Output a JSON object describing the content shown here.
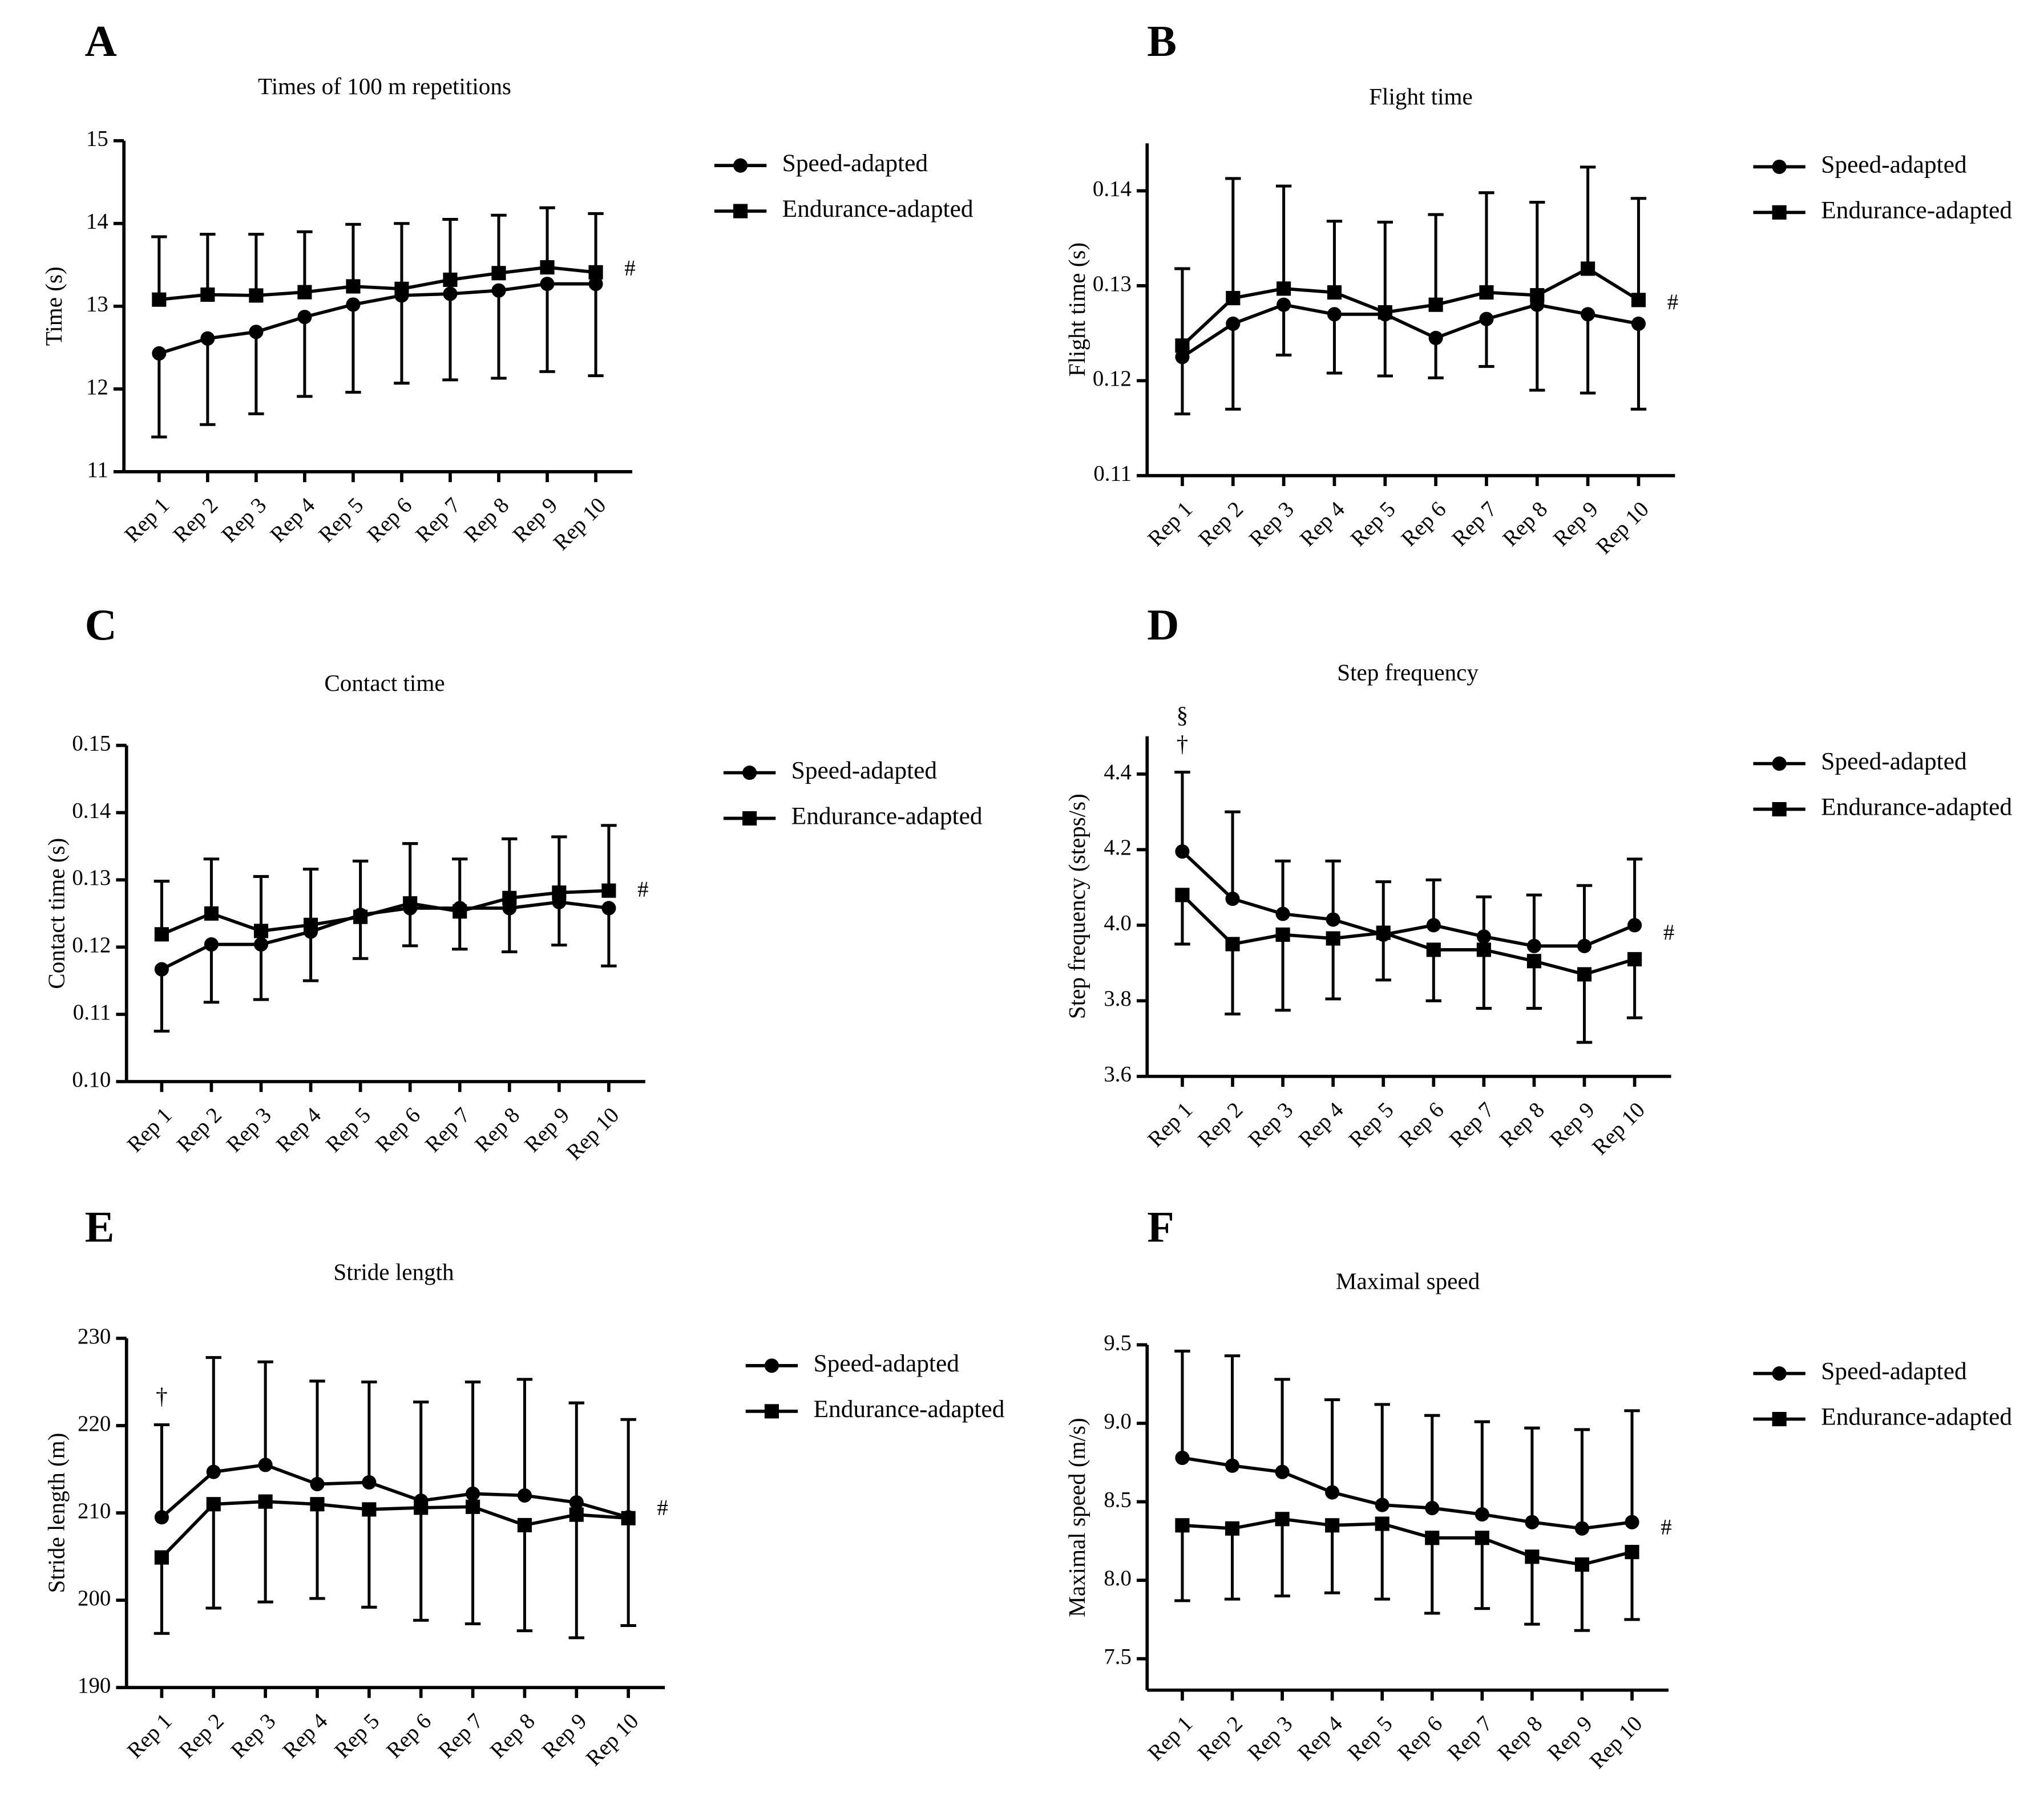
{
  "chart_data": [
    {
      "type": "line",
      "panel_label": "A",
      "title": "Times of 100 m repetitions",
      "y_label": "Time (s)",
      "categories": [
        "Rep 1",
        "Rep 2",
        "Rep 3",
        "Rep 4",
        "Rep 5",
        "Rep 6",
        "Rep 7",
        "Rep 8",
        "Rep 9",
        "Rep 10"
      ],
      "series": [
        {
          "name": "Speed-adapted",
          "color": "#000000",
          "marker": "circle",
          "error_direction": "down",
          "values": [
            12.43,
            12.61,
            12.69,
            12.87,
            13.02,
            13.13,
            13.15,
            13.19,
            13.27,
            13.27
          ],
          "errors": [
            1.01,
            1.04,
            0.99,
            0.96,
            1.06,
            1.06,
            1.04,
            1.06,
            1.06,
            1.11
          ]
        },
        {
          "name": "Endurance-adapted",
          "color": "#000000",
          "marker": "square",
          "error_direction": "up",
          "values": [
            13.08,
            13.14,
            13.13,
            13.17,
            13.24,
            13.21,
            13.32,
            13.4,
            13.47,
            13.41
          ],
          "errors": [
            0.76,
            0.73,
            0.74,
            0.73,
            0.75,
            0.79,
            0.73,
            0.7,
            0.72,
            0.71
          ]
        }
      ],
      "ylim": [
        11,
        15
      ],
      "yticks": [
        11,
        12,
        13,
        14,
        15
      ],
      "end_mark": "#"
    },
    {
      "type": "line",
      "panel_label": "B",
      "title": "Flight time",
      "y_label": "Flight time (s)",
      "categories": [
        "Rep 1",
        "Rep 2",
        "Rep 3",
        "Rep 4",
        "Rep 5",
        "Rep 6",
        "Rep 7",
        "Rep 8",
        "Rep 9",
        "Rep 10"
      ],
      "series": [
        {
          "name": "Speed-adapted",
          "color": "#000000",
          "marker": "circle",
          "error_direction": "down",
          "values": [
            0.1225,
            0.126,
            0.128,
            0.127,
            0.127,
            0.1245,
            0.1265,
            0.128,
            0.127,
            0.126
          ],
          "errors": [
            0.006,
            0.009,
            0.0053,
            0.0062,
            0.0065,
            0.0042,
            0.005,
            0.009,
            0.0083,
            0.009
          ]
        },
        {
          "name": "Endurance-adapted",
          "color": "#000000",
          "marker": "square",
          "error_direction": "up",
          "values": [
            0.1237,
            0.1287,
            0.1297,
            0.1293,
            0.1272,
            0.128,
            0.1293,
            0.129,
            0.1318,
            0.1285
          ],
          "errors": [
            0.0081,
            0.0126,
            0.0108,
            0.0075,
            0.0095,
            0.0095,
            0.0105,
            0.0098,
            0.0107,
            0.0107
          ]
        }
      ],
      "ylim": [
        0.11,
        0.145
      ],
      "yticks": [
        0.11,
        0.12,
        0.13,
        0.14
      ],
      "end_mark": "#"
    },
    {
      "type": "line",
      "panel_label": "C",
      "title": "Contact time",
      "y_label": "Contact time (s)",
      "categories": [
        "Rep 1",
        "Rep 2",
        "Rep 3",
        "Rep 4",
        "Rep 5",
        "Rep 6",
        "Rep 7",
        "Rep 8",
        "Rep 9",
        "Rep 10"
      ],
      "series": [
        {
          "name": "Speed-adapted",
          "color": "#000000",
          "marker": "circle",
          "error_direction": "down",
          "values": [
            0.1167,
            0.1204,
            0.1204,
            0.1223,
            0.1248,
            0.1258,
            0.1258,
            0.1258,
            0.1267,
            0.1258
          ],
          "errors": [
            0.0092,
            0.0086,
            0.0082,
            0.0073,
            0.0065,
            0.0056,
            0.0061,
            0.0065,
            0.0064,
            0.0086
          ]
        },
        {
          "name": "Endurance-adapted",
          "color": "#000000",
          "marker": "square",
          "error_direction": "up",
          "values": [
            0.1219,
            0.125,
            0.1224,
            0.1233,
            0.1245,
            0.1265,
            0.1253,
            0.1273,
            0.1281,
            0.1284
          ],
          "errors": [
            0.0079,
            0.0081,
            0.0081,
            0.0083,
            0.0083,
            0.0089,
            0.0078,
            0.0088,
            0.0083,
            0.0097
          ]
        }
      ],
      "ylim": [
        0.1,
        0.15
      ],
      "yticks": [
        {
          "value": 0.1,
          "label": "0.10"
        },
        0.11,
        0.12,
        0.13,
        0.14,
        0.15
      ],
      "end_mark": "#"
    },
    {
      "type": "line",
      "panel_label": "D",
      "title": "Step frequency",
      "y_label": "Step frequency (steps/s)",
      "categories": [
        "Rep 1",
        "Rep 2",
        "Rep 3",
        "Rep 4",
        "Rep 5",
        "Rep 6",
        "Rep 7",
        "Rep 8",
        "Rep 9",
        "Rep 10"
      ],
      "series": [
        {
          "name": "Speed-adapted",
          "color": "#000000",
          "marker": "circle",
          "error_direction": "up",
          "values": [
            4.195,
            4.07,
            4.03,
            4.015,
            3.975,
            4.0,
            3.97,
            3.945,
            3.945,
            4.0
          ],
          "errors": [
            0.21,
            0.23,
            0.14,
            0.155,
            0.14,
            0.12,
            0.105,
            0.135,
            0.16,
            0.175
          ]
        },
        {
          "name": "Endurance-adapted",
          "color": "#000000",
          "marker": "square",
          "error_direction": "down",
          "values": [
            4.08,
            3.95,
            3.975,
            3.965,
            3.98,
            3.935,
            3.935,
            3.905,
            3.87,
            3.91
          ],
          "errors": [
            0.13,
            0.185,
            0.2,
            0.16,
            0.125,
            0.135,
            0.155,
            0.125,
            0.18,
            0.155
          ]
        }
      ],
      "ylim": [
        3.6,
        4.5
      ],
      "yticks": [
        3.6,
        3.8,
        {
          "value": 4,
          "label": "4.0"
        },
        4.2,
        4.4
      ],
      "end_mark": "#",
      "first_marks": [
        "§",
        "†"
      ]
    },
    {
      "type": "line",
      "panel_label": "E",
      "title": "Stride length",
      "y_label": "Stride length (m)",
      "categories": [
        "Rep 1",
        "Rep 2",
        "Rep 3",
        "Rep 4",
        "Rep 5",
        "Rep 6",
        "Rep 7",
        "Rep 8",
        "Rep 9",
        "Rep 10"
      ],
      "series": [
        {
          "name": "Speed-adapted",
          "color": "#000000",
          "marker": "circle",
          "error_direction": "up",
          "values": [
            209.5,
            214.7,
            215.5,
            213.3,
            213.5,
            211.4,
            212.2,
            212.0,
            211.2,
            209.5
          ],
          "errors": [
            10.6,
            13.1,
            11.8,
            11.8,
            11.5,
            11.3,
            12.8,
            13.3,
            11.4,
            11.2
          ]
        },
        {
          "name": "Endurance-adapted",
          "color": "#000000",
          "marker": "square",
          "error_direction": "down",
          "values": [
            204.9,
            211.0,
            211.3,
            211.0,
            210.4,
            210.6,
            210.7,
            208.6,
            209.8,
            209.4
          ],
          "errors": [
            8.7,
            11.9,
            11.5,
            10.8,
            11.2,
            12.9,
            13.4,
            12.1,
            14.1,
            12.3
          ]
        }
      ],
      "ylim": [
        190,
        230
      ],
      "yticks": [
        190,
        200,
        210,
        220,
        230
      ],
      "end_mark": "#",
      "first_marks": [
        "†"
      ]
    },
    {
      "type": "line",
      "panel_label": "F",
      "title": "Maximal speed",
      "y_label": "Maximal speed (m/s)",
      "categories": [
        "Rep 1",
        "Rep 2",
        "Rep 3",
        "Rep 4",
        "Rep 5",
        "Rep 6",
        "Rep 7",
        "Rep 8",
        "Rep 9",
        "Rep 10"
      ],
      "series": [
        {
          "name": "Speed-adapted",
          "color": "#000000",
          "marker": "circle",
          "error_direction": "up",
          "values": [
            8.78,
            8.73,
            8.69,
            8.56,
            8.48,
            8.46,
            8.42,
            8.37,
            8.33,
            8.37
          ],
          "errors": [
            0.68,
            0.7,
            0.59,
            0.59,
            0.64,
            0.59,
            0.59,
            0.6,
            0.63,
            0.71
          ]
        },
        {
          "name": "Endurance-adapted",
          "color": "#000000",
          "marker": "square",
          "error_direction": "down",
          "values": [
            8.35,
            8.33,
            8.39,
            8.35,
            8.36,
            8.27,
            8.27,
            8.15,
            8.1,
            8.18
          ],
          "errors": [
            0.48,
            0.45,
            0.49,
            0.43,
            0.48,
            0.48,
            0.45,
            0.43,
            0.42,
            0.43
          ]
        }
      ],
      "ylim": [
        7.3,
        9.5
      ],
      "yticks": [
        7.5,
        {
          "value": 8,
          "label": "8.0"
        },
        8.5,
        {
          "value": 9,
          "label": "9.0"
        },
        9.5
      ],
      "end_mark": "#"
    }
  ]
}
